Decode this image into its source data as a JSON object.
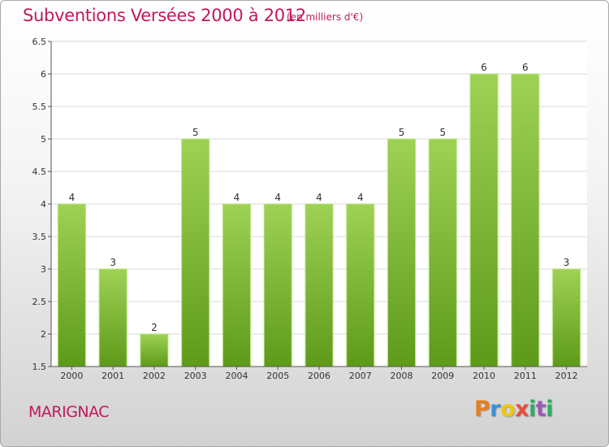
{
  "header": {
    "title": "Subventions Versées 2000 à 2012",
    "unit": "(en milliers d'€)"
  },
  "footer": {
    "commune": "MARIGNAC",
    "logo": {
      "letters": [
        "P",
        "r",
        "o",
        "x",
        "i",
        "t",
        "i"
      ],
      "colors": [
        "#e67e22",
        "#3a8fd6",
        "#f1c40f",
        "#e74c3c",
        "#27ae60",
        "#9b59b6",
        "#27ae60"
      ]
    }
  },
  "colors": {
    "accent": "#c2185b",
    "bar_top": "#9ed255",
    "bar_bottom": "#5e9a1a",
    "grid": "#d9d9d9"
  },
  "chart_data": {
    "type": "bar",
    "categories": [
      "2000",
      "2001",
      "2002",
      "2003",
      "2004",
      "2005",
      "2006",
      "2007",
      "2008",
      "2009",
      "2010",
      "2011",
      "2012"
    ],
    "values": [
      4,
      3,
      2,
      5,
      4,
      4,
      4,
      4,
      5,
      5,
      6,
      6,
      3
    ],
    "data_labels": [
      "4",
      "3",
      "2",
      "5",
      "4",
      "4",
      "4",
      "4",
      "5",
      "5",
      "6",
      "6",
      "3"
    ],
    "yticks": [
      "1.5",
      "2",
      "2.5",
      "3",
      "3.5",
      "4",
      "4.5",
      "5",
      "5.5",
      "6",
      "6.5"
    ],
    "ylim": [
      1.5,
      6.5
    ],
    "grid": true,
    "legend": "none"
  }
}
